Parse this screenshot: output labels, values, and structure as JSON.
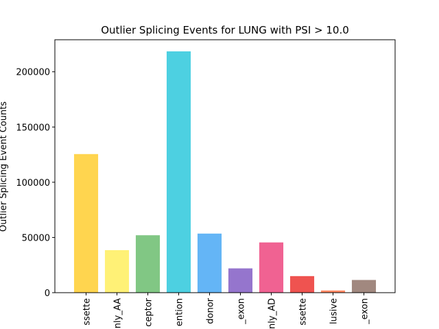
{
  "chart_data": {
    "type": "bar",
    "title": "Outlier Splicing Events for LUNG with PSI > 10.0",
    "xlabel": "",
    "ylabel": "Outlier Splicing Event Counts",
    "categories": [
      "ssette",
      "nly_AA",
      "ceptor",
      "ention",
      "donor",
      "_exon",
      "nly_AD",
      "ssette",
      "lusive",
      "_exon"
    ],
    "values": [
      125500,
      38500,
      52000,
      218500,
      53500,
      22000,
      45500,
      15000,
      2000,
      11500
    ],
    "colors": [
      "#FFD54F",
      "#FFF176",
      "#81C784",
      "#4DD0E1",
      "#64B5F6",
      "#9575CD",
      "#F06292",
      "#EF5350",
      "#FF8A65",
      "#A1887F"
    ],
    "ylim": [
      0,
      229000
    ],
    "yticks": [
      0,
      50000,
      100000,
      150000,
      200000
    ],
    "grid": false
  }
}
